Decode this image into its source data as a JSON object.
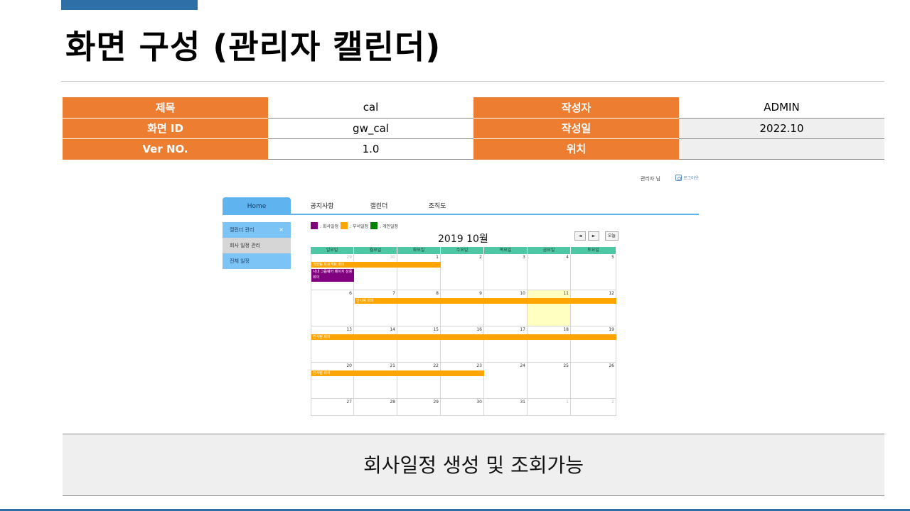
{
  "page": {
    "title": "화면 구성 (관리자 캘린더)"
  },
  "meta": {
    "rows": [
      {
        "label1": "제목",
        "value1": "cal",
        "label2": "작성자",
        "value2": "ADMIN"
      },
      {
        "label1": "화면 ID",
        "value1": "gw_cal",
        "label2": "작성일",
        "value2": "2022.10"
      },
      {
        "label1": "Ver NO.",
        "value1": "1.0",
        "label2": "위치",
        "value2": ""
      }
    ]
  },
  "app": {
    "user": "관리자 님",
    "logout": "로그아웃",
    "nav": [
      "Home",
      "공지사항",
      "캘린더",
      "조직도"
    ],
    "sidebar": {
      "header": "캘린더 관리",
      "close": "×",
      "items": [
        "회사 일정 관리",
        "전체 일정"
      ]
    },
    "legend": [
      {
        "label": ": 회사일정",
        "color": "#800080"
      },
      {
        "label": ": 부서일정",
        "color": "#ffa500"
      },
      {
        "label": ": 개인일정",
        "color": "#008000"
      }
    ],
    "calendar": {
      "title": "2019 10월",
      "prev": "◄",
      "next": "►",
      "today_btn": "오늘",
      "weekdays": [
        "일요일",
        "월요일",
        "화요일",
        "수요일",
        "목요일",
        "금요일",
        "토요일"
      ],
      "weeks": [
        [
          "29",
          "30",
          "1",
          "2",
          "3",
          "4",
          "5"
        ],
        [
          "6",
          "7",
          "8",
          "9",
          "10",
          "11",
          "12"
        ],
        [
          "13",
          "14",
          "15",
          "16",
          "17",
          "18",
          "19"
        ],
        [
          "20",
          "21",
          "22",
          "23",
          "24",
          "25",
          "26"
        ],
        [
          "27",
          "28",
          "29",
          "30",
          "31",
          "1",
          "2"
        ]
      ],
      "other_month": [
        [
          0,
          0
        ],
        [
          0,
          1
        ],
        [
          4,
          5
        ],
        [
          4,
          6
        ]
      ],
      "today": [
        1,
        5
      ],
      "events": [
        {
          "title": "개발팀 프로젝트 회의",
          "week": 0,
          "start": 0,
          "end": 3,
          "row": 0,
          "color": "orange"
        },
        {
          "title": "사내 그룹웨어 페이지 상용 회의",
          "week": 0,
          "start": 0,
          "end": 1,
          "row": 1,
          "color": "purple"
        },
        {
          "title": "인사팀 회의",
          "week": 1,
          "start": 1,
          "end": 7,
          "row": 0,
          "color": "orange"
        },
        {
          "title": "인사팀 회의",
          "week": 2,
          "start": 0,
          "end": 7,
          "row": 0,
          "color": "orange"
        },
        {
          "title": "인사팀 회의",
          "week": 3,
          "start": 0,
          "end": 4,
          "row": 0,
          "color": "orange"
        }
      ]
    }
  },
  "footer": {
    "text": "회사일정 생성 및 조회가능"
  }
}
